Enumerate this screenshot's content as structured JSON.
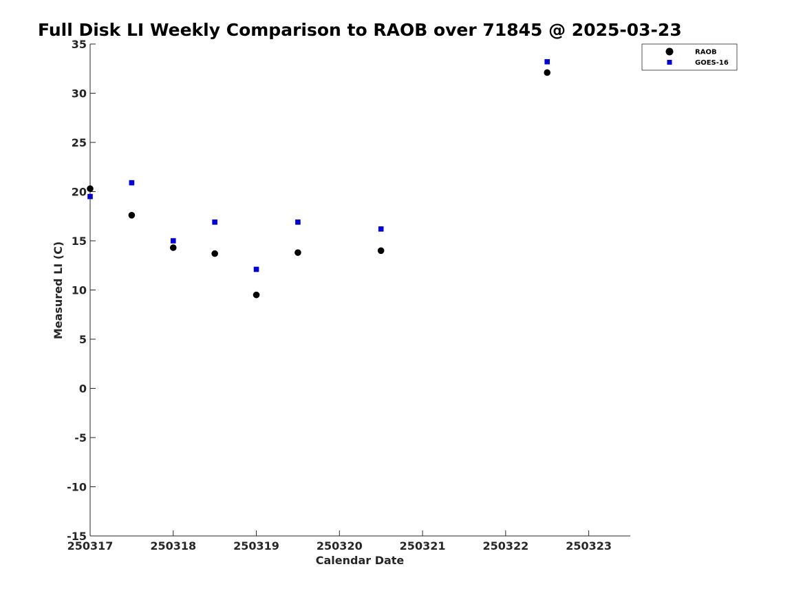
{
  "chart_data": {
    "type": "scatter",
    "title": "Full Disk LI Weekly Comparison to RAOB over 71845 @ 2025-03-23",
    "xlabel": "Calendar Date",
    "ylabel": "Measured LI (C)",
    "xlim": [
      "2025-03-17",
      "2025-03-23 12:00"
    ],
    "ylim": [
      -15,
      35
    ],
    "x_ticks": [
      "2025-03-17",
      "2025-03-18",
      "2025-03-19",
      "2025-03-20",
      "2025-03-21",
      "2025-03-22",
      "2025-03-23"
    ],
    "x_tick_labels": [
      "250317",
      "250318",
      "250319",
      "250320",
      "250321",
      "250322",
      "250323"
    ],
    "y_ticks": [
      35,
      30,
      25,
      20,
      15,
      10,
      5,
      0,
      -5,
      -10,
      -15
    ],
    "y_tick_labels": [
      "35",
      "30",
      "25",
      "20",
      "15",
      "10",
      "5",
      "0",
      "-5",
      "-10",
      "-15"
    ],
    "grid": false,
    "legend_position": "top-right",
    "series": [
      {
        "name": "RAOB",
        "marker": "circle",
        "color": "#000000",
        "points": [
          {
            "x": "2025-03-17 00:00",
            "y": 20.3
          },
          {
            "x": "2025-03-17 12:00",
            "y": 17.6
          },
          {
            "x": "2025-03-18 00:00",
            "y": 14.3
          },
          {
            "x": "2025-03-18 12:00",
            "y": 13.7
          },
          {
            "x": "2025-03-19 00:00",
            "y": 9.5
          },
          {
            "x": "2025-03-19 12:00",
            "y": 13.8
          },
          {
            "x": "2025-03-20 12:00",
            "y": 14.0
          },
          {
            "x": "2025-03-22 12:00",
            "y": 32.1
          }
        ]
      },
      {
        "name": "GOES-16",
        "marker": "square",
        "color": "#0000dd",
        "points": [
          {
            "x": "2025-03-17 00:00",
            "y": 19.5
          },
          {
            "x": "2025-03-17 12:00",
            "y": 20.9
          },
          {
            "x": "2025-03-18 00:00",
            "y": 15.0
          },
          {
            "x": "2025-03-18 12:00",
            "y": 16.9
          },
          {
            "x": "2025-03-19 00:00",
            "y": 12.1
          },
          {
            "x": "2025-03-19 12:00",
            "y": 16.9
          },
          {
            "x": "2025-03-20 12:00",
            "y": 16.2
          },
          {
            "x": "2025-03-22 12:00",
            "y": 33.2
          }
        ]
      }
    ]
  }
}
